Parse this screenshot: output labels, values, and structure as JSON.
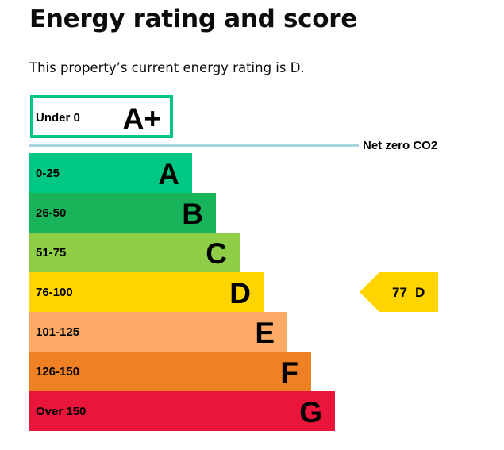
{
  "page": {
    "title": "Energy rating and score",
    "intro": "This property’s current energy rating is D."
  },
  "chart_data": {
    "type": "bar",
    "net_zero": {
      "range": "Under 0",
      "letter": "A+",
      "border_color": "#00c781",
      "line_color": "#a7d8de",
      "label": "Net zero CO2"
    },
    "bands": [
      {
        "range": "0-25",
        "letter": "A",
        "color": "#00c781",
        "text_color": "#000000"
      },
      {
        "range": "26-50",
        "letter": "B",
        "color": "#19b459",
        "text_color": "#000000"
      },
      {
        "range": "51-75",
        "letter": "C",
        "color": "#8dce46",
        "text_color": "#000000"
      },
      {
        "range": "76-100",
        "letter": "D",
        "color": "#ffd500",
        "text_color": "#000000"
      },
      {
        "range": "101-125",
        "letter": "E",
        "color": "#fcaa65",
        "text_color": "#000000"
      },
      {
        "range": "126-150",
        "letter": "F",
        "color": "#ef8023",
        "text_color": "#000000"
      },
      {
        "range": "Over 150",
        "letter": "G",
        "color": "#e9153b",
        "text_color": "#000000"
      }
    ],
    "current": {
      "score": "77",
      "letter": "D",
      "band_index": 3,
      "color": "#ffd500"
    }
  }
}
